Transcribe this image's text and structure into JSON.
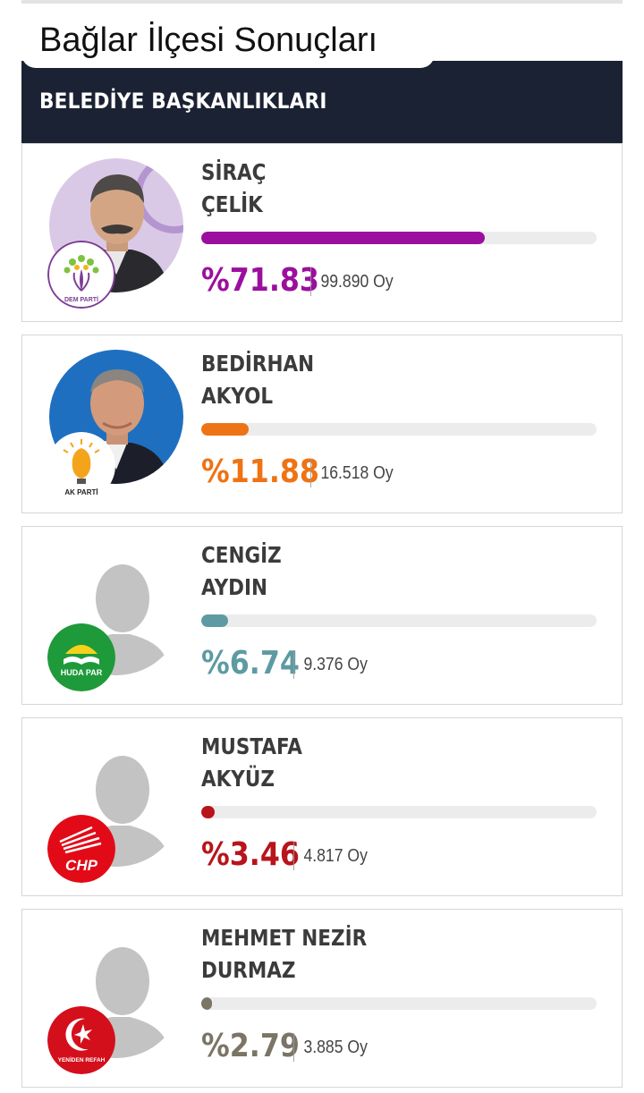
{
  "page": {
    "title": "Bağlar İlçesi Sonuçları",
    "section_header": "BELEDİYE BAŞKANLIKLARI"
  },
  "candidates": [
    {
      "name_line1": "SİRAÇ",
      "name_line2": "ÇELİK",
      "percent_text": "%71.83",
      "percent": 71.83,
      "votes_text": "99.890 Oy",
      "color": "#9b0f9e",
      "photo": "candidate-photo-icon",
      "party_logo": "dem-parti-logo-icon",
      "party_logo_text": "DEM PARTİ"
    },
    {
      "name_line1": "BEDİRHAN",
      "name_line2": "AKYOL",
      "percent_text": "%11.88",
      "percent": 11.88,
      "votes_text": "16.518 Oy",
      "color": "#ee7314",
      "photo": "candidate-photo-icon",
      "party_logo": "ak-parti-logo-icon",
      "party_logo_text": "AK PARTİ"
    },
    {
      "name_line1": "CENGİZ",
      "name_line2": "AYDIN",
      "percent_text": "%6.74",
      "percent": 6.74,
      "votes_text": "9.376 Oy",
      "color": "#5e9aa2",
      "photo": "person-placeholder-icon",
      "party_logo": "huda-par-logo-icon",
      "party_logo_text": "HUDA PAR"
    },
    {
      "name_line1": "MUSTAFA",
      "name_line2": "AKYÜZ",
      "percent_text": "%3.46",
      "percent": 3.46,
      "votes_text": "4.817 Oy",
      "color": "#b8141b",
      "photo": "person-placeholder-icon",
      "party_logo": "chp-logo-icon",
      "party_logo_text": "CHP"
    },
    {
      "name_line1": "MEHMET NEZİR",
      "name_line2": "DURMAZ",
      "percent_text": "%2.79",
      "percent": 2.79,
      "votes_text": "3.885 Oy",
      "color": "#7a7565",
      "photo": "person-placeholder-icon",
      "party_logo": "yeniden-refah-logo-icon",
      "party_logo_text": "YENİDEN REFAH"
    }
  ]
}
